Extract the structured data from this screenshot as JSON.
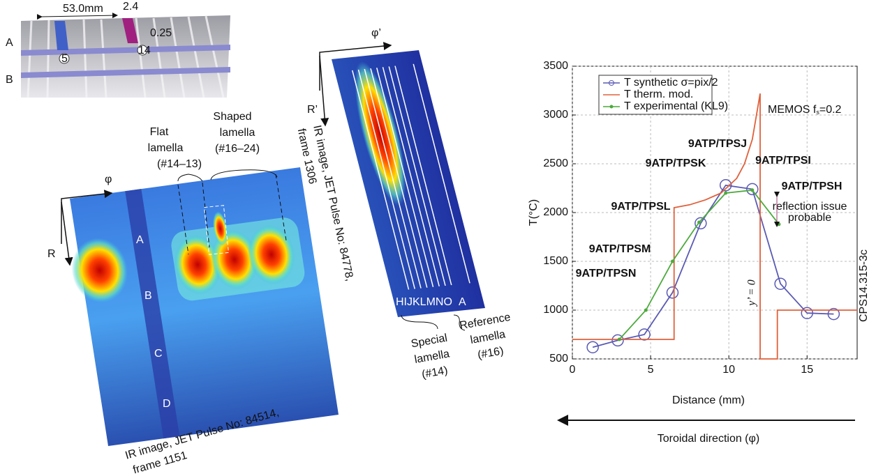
{
  "top_photo": {
    "dimension": "53.0mm",
    "gap": "2.4",
    "depth": "0.25",
    "row_a": "A",
    "row_b": "B",
    "tile_left": "5",
    "tile_right": "14"
  },
  "ir_image_1": {
    "toroidal": "φ",
    "radial": "R",
    "rows": [
      "A",
      "B",
      "C",
      "D"
    ],
    "flat_label": [
      "Flat",
      "lamella",
      "(#14–13)"
    ],
    "shaped_label": [
      "Shaped",
      "lamella",
      "(#16–24)"
    ],
    "caption": [
      "IR image, JET Pulse No: 84514,",
      "frame 1151"
    ]
  },
  "ir_image_2": {
    "toroidal": "φ’",
    "radial": "R’",
    "caption": [
      "IR image, JET Pulse No: 84778,",
      "frame 1306"
    ],
    "special_lines": "HIJKLMNO",
    "reference_line": "A",
    "special_label": [
      "Special",
      "lamella",
      "(#14)"
    ],
    "reference_label": [
      "Reference",
      "lamella",
      "(#16)"
    ]
  },
  "chart_data": {
    "type": "line",
    "y_label": "T(°C)",
    "x_label": "Distance (mm)",
    "direction_label": "Toroidal direction (φ)",
    "xlim": [
      0,
      18.2
    ],
    "ylim": [
      500,
      3500
    ],
    "xticks": [
      0,
      5,
      10,
      15
    ],
    "yticks": [
      500,
      1000,
      1500,
      2000,
      2500,
      3000,
      3500
    ],
    "grid": true,
    "legend": "upper left",
    "series": [
      {
        "name": "T synthetic σ=pix/2",
        "color": "#5a5ab4",
        "marker": "circle",
        "x": [
          1.3,
          2.9,
          4.6,
          6.4,
          8.2,
          9.8,
          11.5,
          13.3,
          15.0,
          16.7
        ],
        "values": [
          620,
          690,
          750,
          1180,
          1890,
          2280,
          2240,
          1270,
          970,
          960
        ]
      },
      {
        "name": "T therm. mod.",
        "color": "#e0603a",
        "marker": "none",
        "x": [
          0,
          6.5,
          6.5,
          7.5,
          8.5,
          9.5,
          10.5,
          11,
          11.5,
          12,
          12,
          13.1,
          13.1,
          18.2
        ],
        "values": [
          700,
          700,
          2050,
          2080,
          2130,
          2200,
          2350,
          2500,
          2750,
          3220,
          500,
          500,
          1000,
          1000
        ]
      },
      {
        "name": "T experimental (KL9)",
        "color": "#4caa3c",
        "marker": "star",
        "x": [
          3.0,
          4.7,
          6.4,
          8.1,
          9.8,
          11.5,
          13.2
        ],
        "values": [
          700,
          1000,
          1500,
          1900,
          2200,
          2230,
          1880
        ]
      }
    ],
    "annotations": [
      "9ATP/TPSN",
      "9ATP/TPSM",
      "9ATP/TPSL",
      "9ATP/TPSK",
      "9ATP/TPSJ",
      "9ATP/TPSI",
      "9ATP/TPSH"
    ],
    "memos": {
      "text": "MEMOS f",
      "sub": "s",
      "rest": "=0.2"
    },
    "reflection_note": [
      "reflection issue",
      "probable"
    ],
    "y_prime": "y’ = 0",
    "figure_id": "CPS14.315-3c"
  }
}
